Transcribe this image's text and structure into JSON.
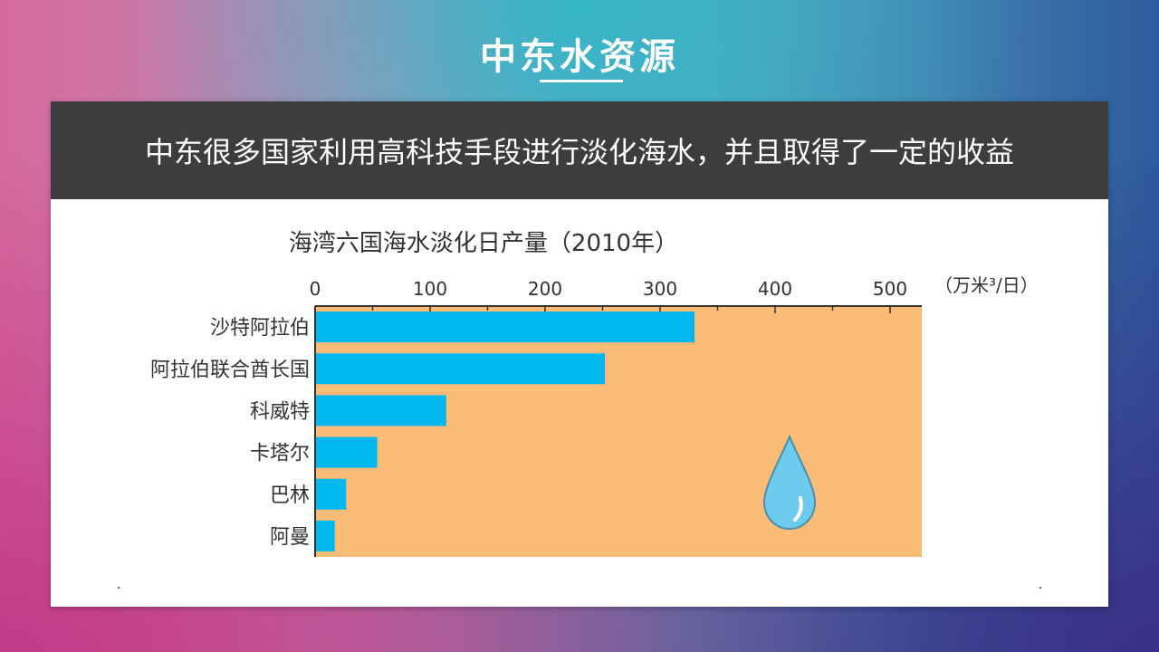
{
  "slide": {
    "title": "中东水资源"
  },
  "banner": {
    "text": "中东很多国家利用高科技手段进行淡化海水，并且取得了一定的收益"
  },
  "chart_data": {
    "type": "bar",
    "orientation": "horizontal",
    "title": "海湾六国海水淡化日产量（2010年）",
    "unit_label": "（万米³/日）",
    "categories": [
      "沙特阿拉伯",
      "阿拉伯联合酋长国",
      "科威特",
      "卡塔尔",
      "巴林",
      "阿曼"
    ],
    "values": [
      330,
      252,
      114,
      54,
      27,
      17
    ],
    "xlim": [
      0,
      530
    ],
    "xticks": [
      0,
      100,
      200,
      300,
      400,
      500
    ],
    "x_axis_position": "top",
    "grid": false,
    "legend": "none",
    "colors": {
      "bar": "#00b8ef",
      "plot_background": "#fbbc78",
      "banner_background": "#3d3d3d",
      "drop_fill": "#6fcaf0",
      "drop_stroke": "#4a90a8"
    },
    "decoration": "water-drop-icon"
  }
}
